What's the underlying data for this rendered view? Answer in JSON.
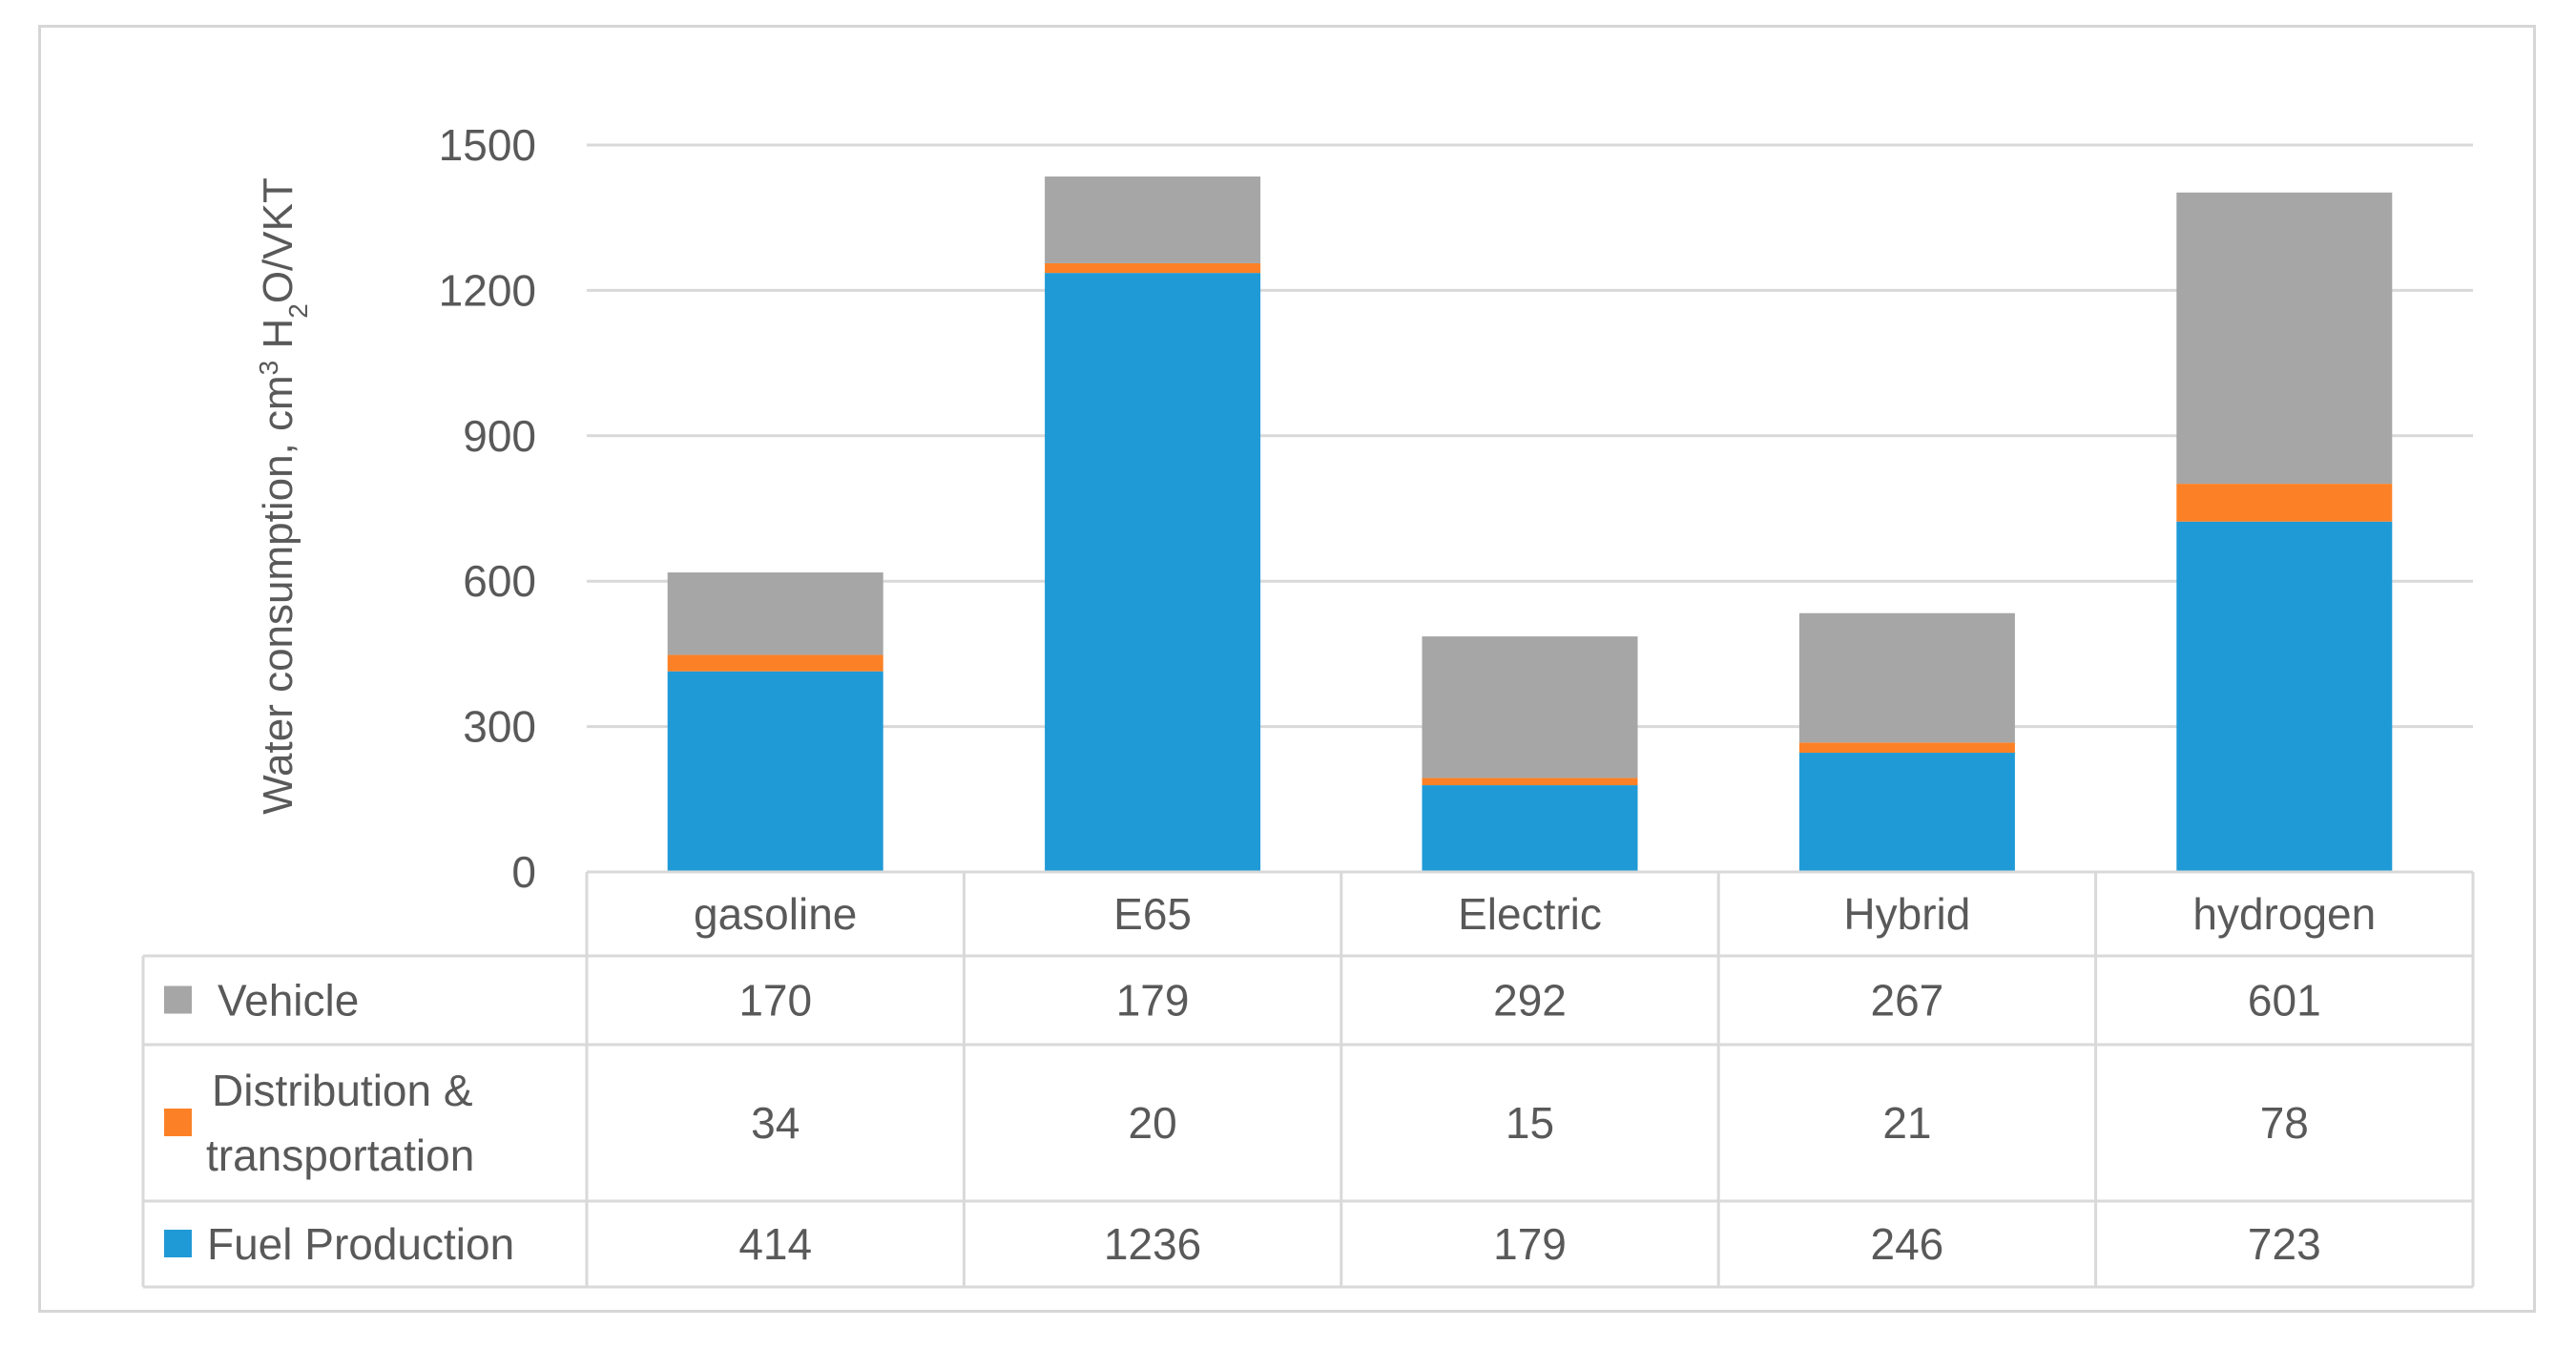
{
  "chart_data": {
    "type": "bar",
    "stacked": true,
    "categories": [
      "gasoline",
      "E65",
      "Electric",
      "Hybrid",
      "hydrogen"
    ],
    "series": [
      {
        "name": "Fuel Production",
        "values": [
          414,
          1236,
          179,
          246,
          723
        ],
        "color": "#1f9ad6"
      },
      {
        "name": "Distribution & transportation",
        "values": [
          34,
          20,
          15,
          21,
          78
        ],
        "color": "#fc8126"
      },
      {
        "name": "Vehicle",
        "values": [
          170,
          179,
          292,
          267,
          601
        ],
        "color": "#a6a6a6"
      }
    ],
    "ylabel_parts": [
      "Water consumption, cm",
      "3",
      " H",
      "2",
      "O/VKT"
    ],
    "ylim": [
      0,
      1500
    ],
    "yticks": [
      "0",
      "300",
      "600",
      "900",
      "1200",
      "1500"
    ],
    "grid": true,
    "data_table": {
      "rows": [
        {
          "label": "Vehicle",
          "series_index": 2,
          "cells": [
            "170",
            "179",
            "292",
            "267",
            "601"
          ]
        },
        {
          "label_lines": [
            "Distribution &",
            "transportation"
          ],
          "series_index": 1,
          "cells": [
            "34",
            "20",
            "15",
            "21",
            "78"
          ]
        },
        {
          "label": "Fuel Production",
          "series_index": 0,
          "cells": [
            "414",
            "1236",
            "179",
            "246",
            "723"
          ]
        }
      ]
    }
  }
}
